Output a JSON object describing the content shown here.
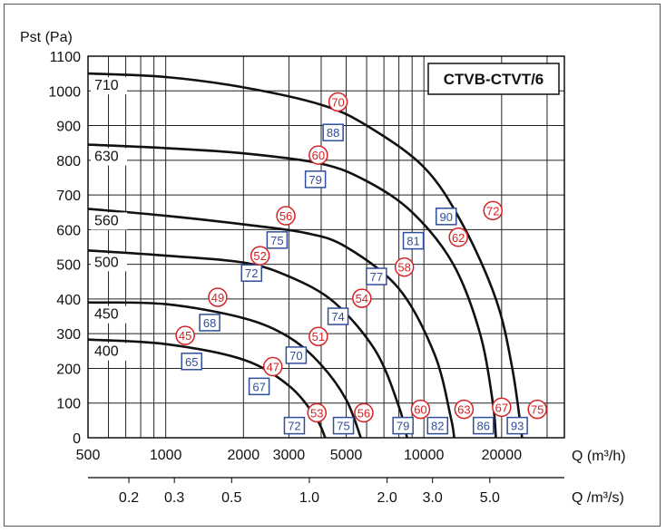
{
  "chart_data": {
    "type": "line",
    "title": "CTVB-CTVT/6",
    "ylabel": "Pst (Pa)",
    "xlabel": "Q (m³/h)",
    "x2label": "Q /m³/s)",
    "xscale": "log",
    "xlim": [
      500,
      35000
    ],
    "ylim": [
      0,
      1100
    ],
    "grid": true,
    "y_ticks": [
      "0",
      "100",
      "200",
      "300",
      "400",
      "500",
      "600",
      "700",
      "800",
      "900",
      "1000",
      "1100"
    ],
    "x_ticks": [
      {
        "value": 500,
        "label": "500"
      },
      {
        "value": 1000,
        "label": "1000"
      },
      {
        "value": 2000,
        "label": "2000"
      },
      {
        "value": 3000,
        "label": "3000"
      },
      {
        "value": 5000,
        "label": "5000"
      },
      {
        "value": 10000,
        "label": "10000"
      },
      {
        "value": 20000,
        "label": "20000"
      }
    ],
    "x2_ticks": [
      {
        "value": 0.2,
        "label": "0.2"
      },
      {
        "value": 0.3,
        "label": "0.3"
      },
      {
        "value": 0.5,
        "label": "0.5"
      },
      {
        "value": 1.0,
        "label": "1.0"
      },
      {
        "value": 2.0,
        "label": "2.0"
      },
      {
        "value": 3.0,
        "label": "3.0"
      },
      {
        "value": 5.0,
        "label": "5.0"
      }
    ],
    "series": [
      {
        "name": "400",
        "points": [
          [
            500,
            283
          ],
          [
            1000,
            270
          ],
          [
            2000,
            225
          ],
          [
            3000,
            150
          ],
          [
            3800,
            60
          ],
          [
            4150,
            0
          ]
        ]
      },
      {
        "name": "450",
        "points": [
          [
            500,
            390
          ],
          [
            1000,
            385
          ],
          [
            2000,
            345
          ],
          [
            3000,
            290
          ],
          [
            4000,
            210
          ],
          [
            5000,
            110
          ],
          [
            5700,
            0
          ]
        ]
      },
      {
        "name": "500",
        "points": [
          [
            500,
            540
          ],
          [
            1000,
            525
          ],
          [
            2000,
            505
          ],
          [
            3000,
            465
          ],
          [
            4500,
            390
          ],
          [
            6500,
            250
          ],
          [
            8000,
            90
          ],
          [
            8600,
            0
          ]
        ]
      },
      {
        "name": "560",
        "points": [
          [
            500,
            660
          ],
          [
            1000,
            640
          ],
          [
            2000,
            615
          ],
          [
            3500,
            590
          ],
          [
            5000,
            550
          ],
          [
            8000,
            430
          ],
          [
            11000,
            240
          ],
          [
            12700,
            60
          ],
          [
            13100,
            0
          ]
        ]
      },
      {
        "name": "630",
        "points": [
          [
            500,
            845
          ],
          [
            1000,
            835
          ],
          [
            2000,
            820
          ],
          [
            4000,
            790
          ],
          [
            6000,
            740
          ],
          [
            9000,
            650
          ],
          [
            13000,
            500
          ],
          [
            16500,
            300
          ],
          [
            18500,
            100
          ],
          [
            19000,
            0
          ]
        ]
      },
      {
        "name": "710",
        "points": [
          [
            500,
            1050
          ],
          [
            1000,
            1040
          ],
          [
            2000,
            1010
          ],
          [
            4000,
            960
          ],
          [
            6000,
            900
          ],
          [
            10000,
            780
          ],
          [
            14000,
            620
          ],
          [
            19000,
            400
          ],
          [
            22000,
            200
          ],
          [
            24000,
            0
          ]
        ]
      }
    ],
    "power_markers": [
      {
        "label": "65",
        "q": 1260,
        "p": 220
      },
      {
        "label": "67",
        "q": 2300,
        "p": 148
      },
      {
        "label": "70",
        "q": 3200,
        "p": 238
      },
      {
        "label": "72",
        "q": 3150,
        "p": 35
      },
      {
        "label": "68",
        "q": 1480,
        "p": 332
      },
      {
        "label": "74",
        "q": 4650,
        "p": 350
      },
      {
        "label": "75",
        "q": 4880,
        "p": 35
      },
      {
        "label": "72",
        "q": 2150,
        "p": 475
      },
      {
        "label": "77",
        "q": 6550,
        "p": 465
      },
      {
        "label": "79",
        "q": 8300,
        "p": 35
      },
      {
        "label": "75",
        "q": 2700,
        "p": 570
      },
      {
        "label": "81",
        "q": 9100,
        "p": 568
      },
      {
        "label": "82",
        "q": 11300,
        "p": 35
      },
      {
        "label": "79",
        "q": 3800,
        "p": 745
      },
      {
        "label": "90",
        "q": 12200,
        "p": 638
      },
      {
        "label": "86",
        "q": 17000,
        "p": 35
      },
      {
        "label": "88",
        "q": 4450,
        "p": 880
      },
      {
        "label": "93",
        "q": 23000,
        "p": 35
      }
    ],
    "noise_markers": [
      {
        "label": "45",
        "q": 1190,
        "p": 295
      },
      {
        "label": "47",
        "q": 2600,
        "p": 205
      },
      {
        "label": "53",
        "q": 3850,
        "p": 72
      },
      {
        "label": "49",
        "q": 1590,
        "p": 405
      },
      {
        "label": "51",
        "q": 3900,
        "p": 292
      },
      {
        "label": "56",
        "q": 5850,
        "p": 72
      },
      {
        "label": "52",
        "q": 2320,
        "p": 525
      },
      {
        "label": "54",
        "q": 5750,
        "p": 402
      },
      {
        "label": "60",
        "q": 9700,
        "p": 82
      },
      {
        "label": "56",
        "q": 2920,
        "p": 640
      },
      {
        "label": "58",
        "q": 8400,
        "p": 492
      },
      {
        "label": "63",
        "q": 14300,
        "p": 82
      },
      {
        "label": "60",
        "q": 3900,
        "p": 815
      },
      {
        "label": "62",
        "q": 13600,
        "p": 578
      },
      {
        "label": "67",
        "q": 20000,
        "p": 88
      },
      {
        "label": "70",
        "q": 4650,
        "p": 968
      },
      {
        "label": "72",
        "q": 18500,
        "p": 655
      },
      {
        "label": "75",
        "q": 27500,
        "p": 82
      }
    ],
    "colors": {
      "curve": "#111111",
      "grid": "#222222",
      "noise": "#d62222",
      "power": "#2f4f9a"
    }
  }
}
